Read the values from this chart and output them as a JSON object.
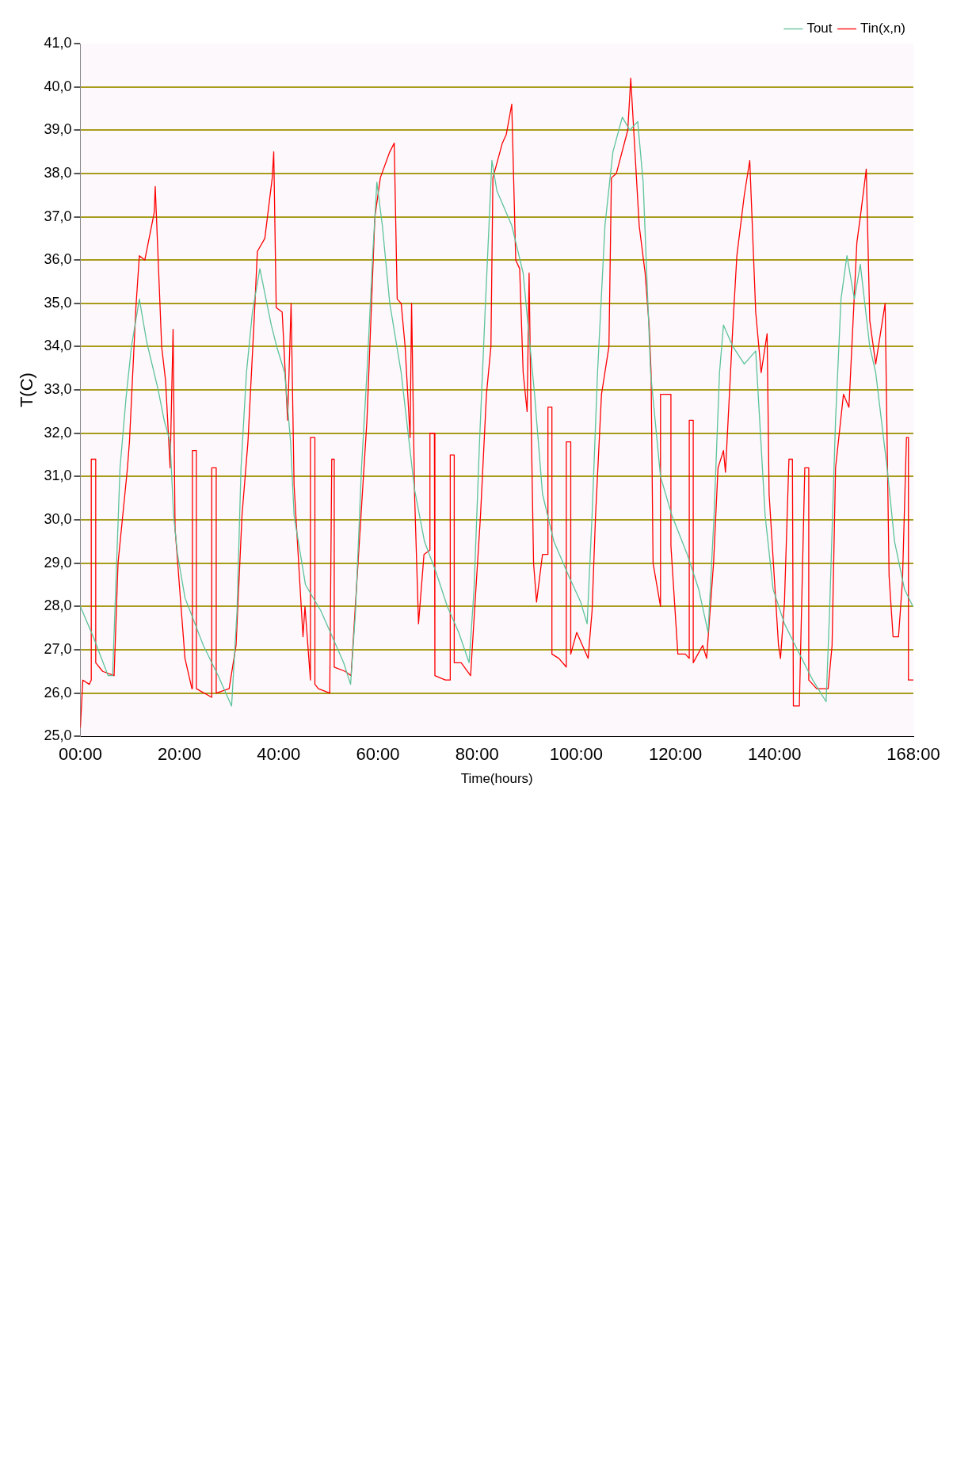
{
  "chart_data": {
    "type": "line",
    "xlabel": "Time(hours)",
    "ylabel": "T(C)",
    "xlim": [
      0,
      168
    ],
    "xticks": [
      {
        "value": 0,
        "label": "00:00"
      },
      {
        "value": 20,
        "label": "20:00"
      },
      {
        "value": 40,
        "label": "40:00"
      },
      {
        "value": 60,
        "label": "60:00"
      },
      {
        "value": 80,
        "label": "80:00"
      },
      {
        "value": 100,
        "label": "100:00"
      },
      {
        "value": 120,
        "label": "120:00"
      },
      {
        "value": 140,
        "label": "140:00"
      },
      {
        "value": 168,
        "label": "168:00"
      }
    ],
    "ylim": [
      25,
      41
    ],
    "yticks": [
      {
        "value": 25,
        "label": "25,0"
      },
      {
        "value": 26,
        "label": "26,0"
      },
      {
        "value": 27,
        "label": "27,0"
      },
      {
        "value": 28,
        "label": "28,0"
      },
      {
        "value": 29,
        "label": "29,0"
      },
      {
        "value": 30,
        "label": "30,0"
      },
      {
        "value": 31,
        "label": "31,0"
      },
      {
        "value": 32,
        "label": "32,0"
      },
      {
        "value": 33,
        "label": "33,0"
      },
      {
        "value": 34,
        "label": "34,0"
      },
      {
        "value": 35,
        "label": "35,0"
      },
      {
        "value": 36,
        "label": "36,0"
      },
      {
        "value": 37,
        "label": "37,0"
      },
      {
        "value": 38,
        "label": "38,0"
      },
      {
        "value": 39,
        "label": "39,0"
      },
      {
        "value": 40,
        "label": "40,0"
      },
      {
        "value": 41,
        "label": "41,0"
      }
    ],
    "grid": "y",
    "legend": "top right",
    "marker": "none",
    "line_style": "solid",
    "series": [
      {
        "name": "Tout",
        "color": "#5cc39a",
        "x": [
          0,
          2.6,
          5.6,
          6.5,
          8.0,
          9.2,
          10.3,
          11.9,
          13.4,
          15.7,
          16.9,
          18.1,
          18.8,
          19.6,
          21.1,
          24.8,
          27.8,
          30.5,
          31.6,
          32.4,
          33.5,
          34.7,
          36.2,
          38.5,
          39.6,
          41.2,
          42.4,
          43.1,
          45.4,
          48.5,
          50.8,
          53.1,
          54.5,
          55.5,
          56.7,
          57.8,
          59.0,
          59.8,
          60.9,
          62.4,
          64.7,
          66.3,
          67.4,
          69.4,
          71.7,
          74.0,
          76.3,
          78.4,
          79.4,
          80.5,
          81.7,
          83.0,
          84.0,
          87.0,
          89.3,
          91.6,
          93.2,
          95.5,
          98.5,
          100.9,
          102.2,
          103.2,
          104.3,
          105.8,
          107.4,
          109.3,
          110.8,
          112.4,
          113.5,
          115.0,
          117.0,
          119.3,
          122.4,
          124.7,
          126.6,
          127.8,
          128.9,
          129.7,
          131.6,
          133.9,
          136.2,
          137.0,
          138.1,
          139.7,
          142.0,
          144.6,
          147.7,
          150.4,
          151.1,
          152.3,
          153.4,
          154.6,
          156.1,
          157.3,
          159.2,
          160.4,
          162.7,
          164.2,
          166.2,
          167.9
        ],
        "values": [
          28.0,
          27.3,
          26.4,
          26.4,
          31.2,
          32.8,
          34.0,
          35.1,
          34.1,
          33.0,
          32.3,
          31.8,
          30.1,
          29.2,
          28.2,
          27.1,
          26.4,
          25.7,
          27.9,
          31.2,
          33.4,
          34.8,
          35.8,
          34.5,
          34.0,
          33.4,
          31.8,
          30.1,
          28.5,
          27.9,
          27.3,
          26.7,
          26.2,
          27.9,
          31.2,
          33.4,
          36.2,
          37.8,
          36.8,
          35.0,
          33.4,
          31.8,
          30.7,
          29.5,
          28.8,
          28.0,
          27.4,
          26.7,
          28.4,
          31.8,
          35.0,
          38.3,
          37.6,
          36.8,
          35.7,
          32.9,
          30.6,
          29.5,
          28.7,
          28.1,
          27.6,
          30.1,
          33.4,
          36.8,
          38.5,
          39.3,
          39.0,
          39.2,
          37.8,
          33.4,
          31.0,
          30.1,
          29.2,
          28.4,
          27.4,
          30.1,
          33.4,
          34.5,
          34.0,
          33.6,
          33.9,
          32.3,
          30.1,
          28.4,
          27.6,
          27.0,
          26.3,
          25.8,
          27.9,
          32.3,
          35.1,
          36.1,
          35.1,
          35.9,
          34.0,
          33.4,
          31.2,
          29.5,
          28.4,
          28.0
        ]
      },
      {
        "name": "Tin(x,n)",
        "color": "#ff0000",
        "x": [
          0,
          0.5,
          1.8,
          2.2,
          2.2,
          3.1,
          3.1,
          4.5,
          6.8,
          7.6,
          9.5,
          9.9,
          11.2,
          11.9,
          13.0,
          14.9,
          15.1,
          16.4,
          17.2,
          18.1,
          18.7,
          19.1,
          21.1,
          22.5,
          22.6,
          23.4,
          23.4,
          26.5,
          26.5,
          27.4,
          27.4,
          30.0,
          31.4,
          32.6,
          33.8,
          35.0,
          35.7,
          37.2,
          38.7,
          39.0,
          39.5,
          40.7,
          41.8,
          42.5,
          43.1,
          44.9,
          45.3,
          46.4,
          46.4,
          47.3,
          47.3,
          48.0,
          50.3,
          50.7,
          51.2,
          51.2,
          53.4,
          54.6,
          55.4,
          56.6,
          57.8,
          59.4,
          60.5,
          62.4,
          63.3,
          63.9,
          64.7,
          65.5,
          66.5,
          66.8,
          67.4,
          68.2,
          69.3,
          70.5,
          70.5,
          71.4,
          71.5,
          73.6,
          74.6,
          74.6,
          75.4,
          75.4,
          76.8,
          78.7,
          79.5,
          80.7,
          81.9,
          82.8,
          83.2,
          85.1,
          85.9,
          87.0,
          87.8,
          88.6,
          89.3,
          90.1,
          90.5,
          90.9,
          91.4,
          92.0,
          93.2,
          94.3,
          94.3,
          95.1,
          95.1,
          96.5,
          98.0,
          98.0,
          98.9,
          98.9,
          100.1,
          102.4,
          103.2,
          103.9,
          105.1,
          106.6,
          107.1,
          108.1,
          110.4,
          111.0,
          112.7,
          113.9,
          114.7,
          115.1,
          115.5,
          117.0,
          117.0,
          119.1,
          119.1,
          120.5,
          122.0,
          122.8,
          122.8,
          123.6,
          123.6,
          125.5,
          126.3,
          127.7,
          128.6,
          129.7,
          130.1,
          130.9,
          131.6,
          132.4,
          133.9,
          135.0,
          136.2,
          137.3,
          138.5,
          138.9,
          140.8,
          141.2,
          142.0,
          142.9,
          143.6,
          143.8,
          145.0,
          146.1,
          146.9,
          146.9,
          148.5,
          150.8,
          151.6,
          152.3,
          153.9,
          155.0,
          156.6,
          157.3,
          158.5,
          159.2,
          160.4,
          162.3,
          163.1,
          163.9,
          165.0,
          165.8,
          166.6,
          167.0,
          167.0,
          168.0
        ],
        "values": [
          25.2,
          26.3,
          26.2,
          26.3,
          31.4,
          31.4,
          26.7,
          26.5,
          26.4,
          29.0,
          31.2,
          31.8,
          34.9,
          36.1,
          36.0,
          37.1,
          37.7,
          34.0,
          33.2,
          31.2,
          34.4,
          29.8,
          26.8,
          26.1,
          31.6,
          31.6,
          26.1,
          25.9,
          31.2,
          31.2,
          26.0,
          26.1,
          27.1,
          30.1,
          31.8,
          34.5,
          36.2,
          36.5,
          37.9,
          38.5,
          34.9,
          34.8,
          32.3,
          35.0,
          30.8,
          27.3,
          28.0,
          26.3,
          31.9,
          31.9,
          26.2,
          26.1,
          26.0,
          31.4,
          31.4,
          26.6,
          26.5,
          26.4,
          27.9,
          30.1,
          32.3,
          37.0,
          37.9,
          38.5,
          38.7,
          35.1,
          35.0,
          34.0,
          31.9,
          35.0,
          30.6,
          27.6,
          29.2,
          29.3,
          32.0,
          32.0,
          26.4,
          26.3,
          26.3,
          31.5,
          31.5,
          26.7,
          26.7,
          26.4,
          27.9,
          30.1,
          32.9,
          34.0,
          37.9,
          38.7,
          38.9,
          39.6,
          36.0,
          35.8,
          33.4,
          32.5,
          35.7,
          32.4,
          29.0,
          28.1,
          29.2,
          29.2,
          32.6,
          32.6,
          26.9,
          26.8,
          26.6,
          31.8,
          31.8,
          26.9,
          27.4,
          26.8,
          27.9,
          30.1,
          32.9,
          34.0,
          37.9,
          38.0,
          39.0,
          40.2,
          36.8,
          35.7,
          34.5,
          33.4,
          29.0,
          28.0,
          32.9,
          32.9,
          29.4,
          26.9,
          26.9,
          26.8,
          32.3,
          32.3,
          26.7,
          27.1,
          26.8,
          29.0,
          31.2,
          31.6,
          31.1,
          32.9,
          34.5,
          36.1,
          37.5,
          38.3,
          34.8,
          33.4,
          34.3,
          30.6,
          27.1,
          26.8,
          28.1,
          31.4,
          31.4,
          25.7,
          25.7,
          31.2,
          31.2,
          26.3,
          26.1,
          26.1,
          27.1,
          31.2,
          32.9,
          32.6,
          36.4,
          37.0,
          38.1,
          34.6,
          33.6,
          35.0,
          28.7,
          27.3,
          27.3,
          28.6,
          31.9,
          31.9,
          26.3,
          26.3
        ]
      }
    ]
  }
}
